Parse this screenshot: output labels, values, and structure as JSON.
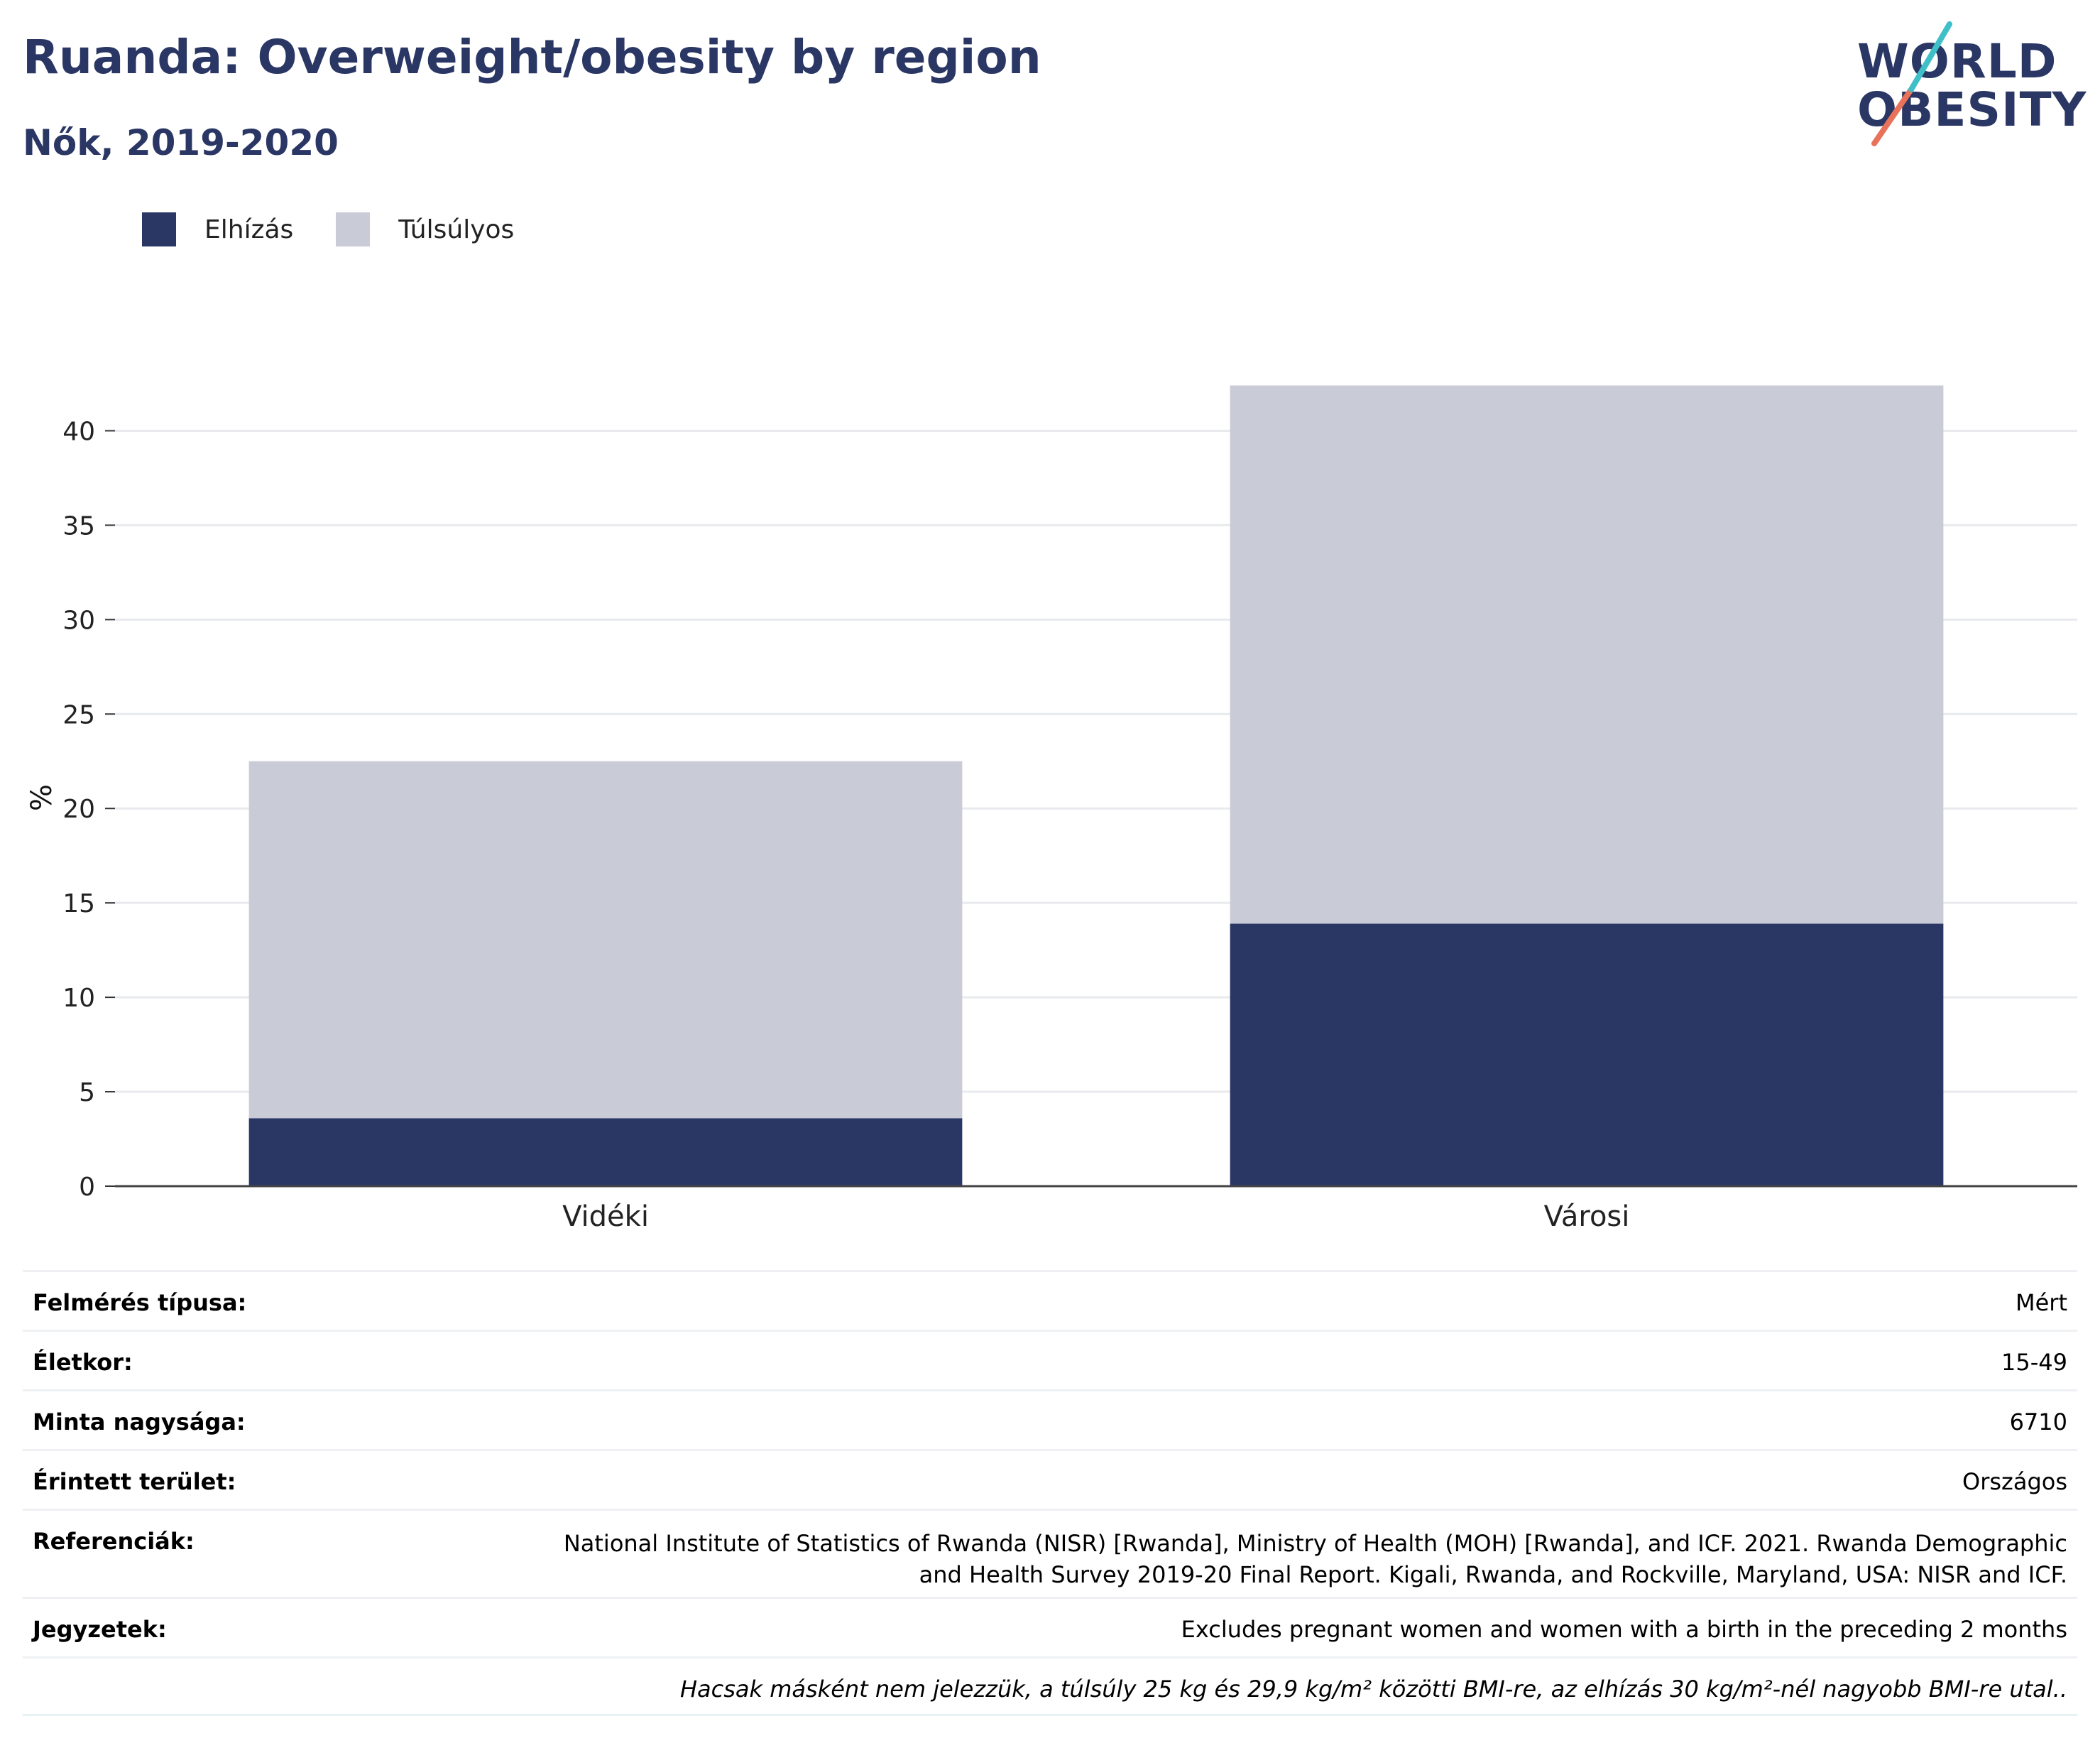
{
  "header": {
    "title": "Ruanda: Overweight/obesity by region",
    "subtitle": "Nők, 2019-2020"
  },
  "logo": {
    "line1": "WORLD",
    "line2": "OBESITY",
    "accent_colors": [
      "#e8735a",
      "#3fbfc7"
    ]
  },
  "legend": [
    {
      "label": "Elhízás",
      "color": "#2a3664"
    },
    {
      "label": "Túlsúlyos",
      "color": "#c9cbd7"
    }
  ],
  "chart_data": {
    "type": "bar",
    "stacked": true,
    "categories": [
      "Vidéki",
      "Városi"
    ],
    "series": [
      {
        "name": "Elhízás",
        "values": [
          3.6,
          13.9
        ],
        "color": "#2a3664"
      },
      {
        "name": "Túlsúlyos",
        "values": [
          18.9,
          28.5
        ],
        "color": "#c9cbd7"
      }
    ],
    "ylabel": "%",
    "ylim": [
      0,
      42.5
    ],
    "yticks": [
      0,
      5,
      10,
      15,
      20,
      25,
      30,
      35,
      40
    ],
    "grid": true,
    "legend_position": "top-left"
  },
  "meta": [
    {
      "key": "Felmérés típusa:",
      "value": "Mért"
    },
    {
      "key": "Életkor:",
      "value": "15-49"
    },
    {
      "key": "Minta nagysága:",
      "value": "6710"
    },
    {
      "key": "Érintett terület:",
      "value": "Országos"
    },
    {
      "key": "Referenciák:",
      "value_lines": [
        "National Institute of Statistics of Rwanda (NISR) [Rwanda], Ministry of Health (MOH) [Rwanda], and ICF. 2021. Rwanda Demographic",
        "and Health Survey 2019-20 Final Report. Kigali, Rwanda, and Rockville, Maryland, USA: NISR and ICF."
      ]
    },
    {
      "key": "Jegyzetek:",
      "value": "Excludes pregnant women and women with a birth in the preceding 2 months"
    }
  ],
  "footnote": "Hacsak másként nem jelezzük, a túlsúly 25 kg és 29,9 kg/m² közötti BMI-re, az elhízás 30 kg/m²-nél nagyobb BMI-re utal.."
}
